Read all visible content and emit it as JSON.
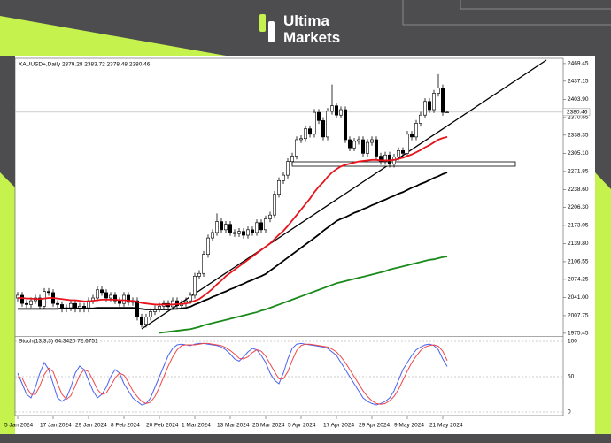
{
  "logo": {
    "line1": "Ultima",
    "line2": "Markets"
  },
  "chart_data": {
    "type": "candlestick",
    "header": "XAUUSD+,Daily 2379.28 2383.72 2378.48 2380.46",
    "categories": [
      "5 Jan 2024",
      null,
      null,
      null,
      null,
      null,
      null,
      null,
      "17 Jan 2024",
      null,
      null,
      null,
      null,
      null,
      null,
      null,
      "29 Jan 2024",
      null,
      null,
      null,
      null,
      null,
      null,
      null,
      "8 Feb 2024",
      null,
      null,
      null,
      null,
      null,
      null,
      null,
      "20 Feb 2024",
      null,
      null,
      null,
      null,
      null,
      null,
      null,
      "1 Mar 2024",
      null,
      null,
      null,
      null,
      null,
      null,
      null,
      "13 Mar 2024",
      null,
      null,
      null,
      null,
      null,
      null,
      null,
      "25 Mar 2024",
      null,
      null,
      null,
      null,
      null,
      null,
      null,
      "5 Apr 2024",
      null,
      null,
      null,
      null,
      null,
      null,
      null,
      "17 Apr 2024",
      null,
      null,
      null,
      null,
      null,
      null,
      null,
      "29 Apr 2024",
      null,
      null,
      null,
      null,
      null,
      null,
      null,
      "9 May 2024",
      null,
      null,
      null,
      null,
      null,
      null,
      null,
      "21 May 2024",
      null
    ],
    "open": [
      2040,
      2045,
      2030,
      2028,
      2035,
      2040,
      2025,
      2052,
      2050,
      2030,
      2028,
      2020,
      2022,
      2030,
      2020,
      2025,
      2020,
      2035,
      2040,
      2055,
      2050,
      2040,
      2045,
      2035,
      2030,
      2045,
      2032,
      2035,
      2005,
      1992,
      2005,
      2015,
      2020,
      2025,
      2030,
      2024,
      2035,
      2026,
      2030,
      2035,
      2045,
      2080,
      2085,
      2120,
      2150,
      2160,
      2180,
      2165,
      2175,
      2160,
      2158,
      2162,
      2155,
      2165,
      2160,
      2178,
      2165,
      2185,
      2192,
      2230,
      2255,
      2265,
      2290,
      2300,
      2330,
      2332,
      2350,
      2340,
      2380,
      2365,
      2335,
      2382,
      2392,
      2375,
      2385,
      2330,
      2315,
      2327,
      2330,
      2305,
      2325,
      2330,
      2300,
      2290,
      2302,
      2285,
      2298,
      2310,
      2305,
      2340,
      2335,
      2360,
      2375,
      2400,
      2385,
      2415,
      2425,
      2379.28
    ],
    "high": [
      2051,
      2051,
      2036,
      2041,
      2046,
      2046,
      2058,
      2058,
      2056,
      2036,
      2034,
      2028,
      2036,
      2036,
      2031,
      2031,
      2041,
      2046,
      2061,
      2061,
      2056,
      2051,
      2051,
      2041,
      2051,
      2051,
      2041,
      2041,
      2011,
      2011,
      2021,
      2026,
      2031,
      2036,
      2036,
      2041,
      2041,
      2036,
      2041,
      2051,
      2086,
      2091,
      2126,
      2156,
      2166,
      2195,
      2186,
      2181,
      2181,
      2166,
      2168,
      2168,
      2171,
      2171,
      2184,
      2184,
      2191,
      2198,
      2236,
      2261,
      2271,
      2296,
      2306,
      2336,
      2338,
      2356,
      2356,
      2386,
      2386,
      2371,
      2388,
      2431,
      2398,
      2391,
      2391,
      2336,
      2333,
      2336,
      2336,
      2331,
      2336,
      2336,
      2306,
      2308,
      2308,
      2304,
      2316,
      2316,
      2346,
      2346,
      2366,
      2381,
      2406,
      2406,
      2421,
      2450,
      2431,
      2383.72
    ],
    "low": [
      2034,
      2024,
      2022,
      2022,
      2029,
      2019,
      2019,
      2044,
      2024,
      2022,
      2014,
      2014,
      2016,
      2014,
      2014,
      2014,
      2014,
      2029,
      2034,
      2044,
      2034,
      2034,
      2029,
      2024,
      2024,
      2026,
      2026,
      1999,
      1986,
      1986,
      1999,
      2009,
      2014,
      2019,
      2018,
      2018,
      2020,
      2020,
      2024,
      2029,
      2039,
      2074,
      2079,
      2114,
      2144,
      2154,
      2159,
      2159,
      2154,
      2152,
      2152,
      2149,
      2149,
      2154,
      2154,
      2159,
      2159,
      2179,
      2186,
      2224,
      2249,
      2259,
      2284,
      2294,
      2324,
      2326,
      2334,
      2334,
      2359,
      2329,
      2329,
      2376,
      2369,
      2369,
      2324,
      2309,
      2309,
      2321,
      2299,
      2299,
      2319,
      2294,
      2284,
      2284,
      2279,
      2279,
      2292,
      2299,
      2299,
      2329,
      2329,
      2354,
      2369,
      2379,
      2379,
      2409,
      2374,
      2378.48
    ],
    "close": [
      2045,
      2030,
      2028,
      2035,
      2040,
      2025,
      2052,
      2050,
      2030,
      2028,
      2020,
      2022,
      2030,
      2020,
      2025,
      2020,
      2035,
      2040,
      2055,
      2050,
      2040,
      2045,
      2035,
      2030,
      2045,
      2032,
      2035,
      2005,
      1992,
      2005,
      2015,
      2020,
      2025,
      2030,
      2024,
      2035,
      2026,
      2030,
      2035,
      2045,
      2080,
      2085,
      2120,
      2150,
      2160,
      2180,
      2165,
      2175,
      2160,
      2158,
      2162,
      2155,
      2165,
      2160,
      2178,
      2165,
      2185,
      2192,
      2230,
      2255,
      2265,
      2290,
      2300,
      2330,
      2332,
      2350,
      2340,
      2380,
      2365,
      2335,
      2382,
      2392,
      2375,
      2385,
      2330,
      2315,
      2327,
      2330,
      2305,
      2325,
      2330,
      2300,
      2290,
      2302,
      2285,
      2298,
      2310,
      2305,
      2340,
      2335,
      2360,
      2375,
      2400,
      2385,
      2415,
      2425,
      2380,
      2380.46
    ],
    "lines": [
      {
        "color": "#e8141c",
        "values": [
          2040,
          2040,
          2039,
          2039,
          2038,
          2038,
          2039,
          2040,
          2040,
          2039,
          2038,
          2037,
          2036,
          2036,
          2035,
          2034,
          2034,
          2035,
          2036,
          2037,
          2037,
          2037,
          2037,
          2036,
          2036,
          2035,
          2035,
          2033,
          2031,
          2030,
          2029,
          2028,
          2028,
          2028,
          2028,
          2028,
          2029,
          2029,
          2030,
          2032,
          2035,
          2038,
          2044,
          2050,
          2057,
          2065,
          2072,
          2080,
          2086,
          2092,
          2098,
          2104,
          2110,
          2116,
          2122,
          2128,
          2134,
          2140,
          2148,
          2156,
          2163,
          2172,
          2182,
          2192,
          2202,
          2212,
          2222,
          2234,
          2244,
          2252,
          2262,
          2270,
          2276,
          2281,
          2284,
          2286,
          2288,
          2290,
          2291,
          2292,
          2293,
          2293,
          2292,
          2292,
          2292,
          2293,
          2295,
          2297,
          2300,
          2303,
          2307,
          2311,
          2316,
          2320,
          2325,
          2330,
          2333,
          2335
        ]
      },
      {
        "color": "#000000",
        "values": [
          2020,
          2020,
          2020,
          2020,
          2020,
          2020,
          2020,
          2020,
          2020,
          2020,
          2021,
          2021,
          2021,
          2021,
          2021,
          2021,
          2021,
          2021,
          2022,
          2022,
          2022,
          2022,
          2022,
          2022,
          2022,
          2022,
          2022,
          2021,
          2020,
          2019,
          2019,
          2019,
          2019,
          2019,
          2019,
          2020,
          2020,
          2021,
          2022,
          2024,
          2028,
          2031,
          2035,
          2038,
          2042,
          2045,
          2049,
          2052,
          2056,
          2059,
          2063,
          2066,
          2070,
          2073,
          2077,
          2080,
          2084,
          2090,
          2096,
          2102,
          2108,
          2114,
          2120,
          2126,
          2132,
          2138,
          2144,
          2150,
          2156,
          2163,
          2169,
          2175,
          2181,
          2185,
          2188,
          2192,
          2196,
          2199,
          2203,
          2206,
          2210,
          2213,
          2217,
          2220,
          2224,
          2227,
          2231,
          2234,
          2238,
          2242,
          2245,
          2249,
          2252,
          2256,
          2260,
          2263,
          2267,
          2270
        ]
      },
      {
        "color": "#1a8a1a",
        "values": [
          null,
          null,
          null,
          null,
          null,
          null,
          null,
          null,
          null,
          null,
          null,
          null,
          null,
          null,
          null,
          null,
          null,
          null,
          null,
          null,
          null,
          null,
          null,
          null,
          null,
          null,
          null,
          null,
          null,
          null,
          null,
          null,
          1976,
          1977,
          1978,
          1979,
          1980,
          1981,
          1982,
          1983,
          1985,
          1987,
          1990,
          1992,
          1994,
          1996,
          1998,
          2000,
          2002,
          2004,
          2006,
          2008,
          2010,
          2012,
          2014,
          2017,
          2019,
          2022,
          2025,
          2028,
          2031,
          2034,
          2037,
          2040,
          2043,
          2046,
          2049,
          2052,
          2055,
          2058,
          2061,
          2064,
          2067,
          2069,
          2071,
          2073,
          2075,
          2077,
          2079,
          2081,
          2083,
          2085,
          2087,
          2089,
          2092,
          2094,
          2096,
          2098,
          2100,
          2102,
          2104,
          2106,
          2108,
          2110,
          2111,
          2113,
          2115,
          2116
        ]
      }
    ],
    "ylim": [
      1972,
      2479
    ],
    "yticks": [
      2469.45,
      2437.15,
      {
        "value": 2403.9,
        "label": "2403.90"
      },
      2370.65,
      2338.35,
      {
        "value": 2305.1,
        "label": "2305.10"
      },
      2271.85,
      {
        "value": 2238.6,
        "label": "2238.60"
      },
      {
        "value": 2206.3,
        "label": "2206.30"
      },
      2173.05,
      {
        "value": 2139.8,
        "label": "2139.80"
      },
      2106.55,
      2074.25,
      {
        "value": 2041,
        "label": "2041.00"
      },
      2007.75,
      1975.45
    ],
    "candle_up_color": "#ffffff",
    "candle_down_color": "#000000",
    "stochastic": {
      "label": "Stoch(13,3,3) 64.3420 72.6751",
      "ylim": [
        -5,
        105
      ],
      "yticks": [
        100,
        50,
        0
      ],
      "series": [
        {
          "color": "#4a62f0",
          "values": [
            55,
            40,
            25,
            20,
            35,
            55,
            70,
            60,
            40,
            20,
            15,
            20,
            35,
            55,
            65,
            60,
            45,
            30,
            20,
            25,
            35,
            50,
            60,
            55,
            40,
            30,
            20,
            15,
            10,
            12,
            20,
            35,
            50,
            65,
            80,
            90,
            95,
            96,
            95,
            94,
            96,
            97,
            97,
            96,
            95,
            94,
            92,
            88,
            82,
            75,
            72,
            78,
            85,
            90,
            88,
            80,
            70,
            55,
            45,
            40,
            55,
            75,
            90,
            96,
            97,
            96,
            95,
            94,
            93,
            92,
            90,
            85,
            80,
            70,
            60,
            50,
            40,
            30,
            20,
            15,
            12,
            10,
            12,
            15,
            20,
            30,
            45,
            60,
            70,
            80,
            88,
            92,
            95,
            96,
            94,
            88,
            75,
            64.342
          ]
        },
        {
          "color": "#f04848",
          "values": [
            50,
            48,
            35,
            25,
            25,
            37,
            53,
            62,
            57,
            40,
            25,
            18,
            23,
            37,
            52,
            60,
            57,
            45,
            32,
            25,
            27,
            37,
            48,
            55,
            52,
            42,
            30,
            22,
            15,
            12,
            14,
            22,
            35,
            50,
            65,
            78,
            88,
            94,
            95,
            95,
            95,
            96,
            97,
            97,
            96,
            95,
            94,
            91,
            87,
            82,
            76,
            75,
            78,
            84,
            88,
            86,
            79,
            68,
            57,
            47,
            47,
            57,
            73,
            87,
            94,
            96,
            96,
            95,
            94,
            93,
            92,
            89,
            85,
            78,
            70,
            60,
            50,
            40,
            30,
            22,
            16,
            12,
            11,
            12,
            16,
            22,
            32,
            45,
            58,
            70,
            79,
            87,
            92,
            94,
            95,
            93,
            86,
            72.6751
          ]
        }
      ]
    }
  }
}
